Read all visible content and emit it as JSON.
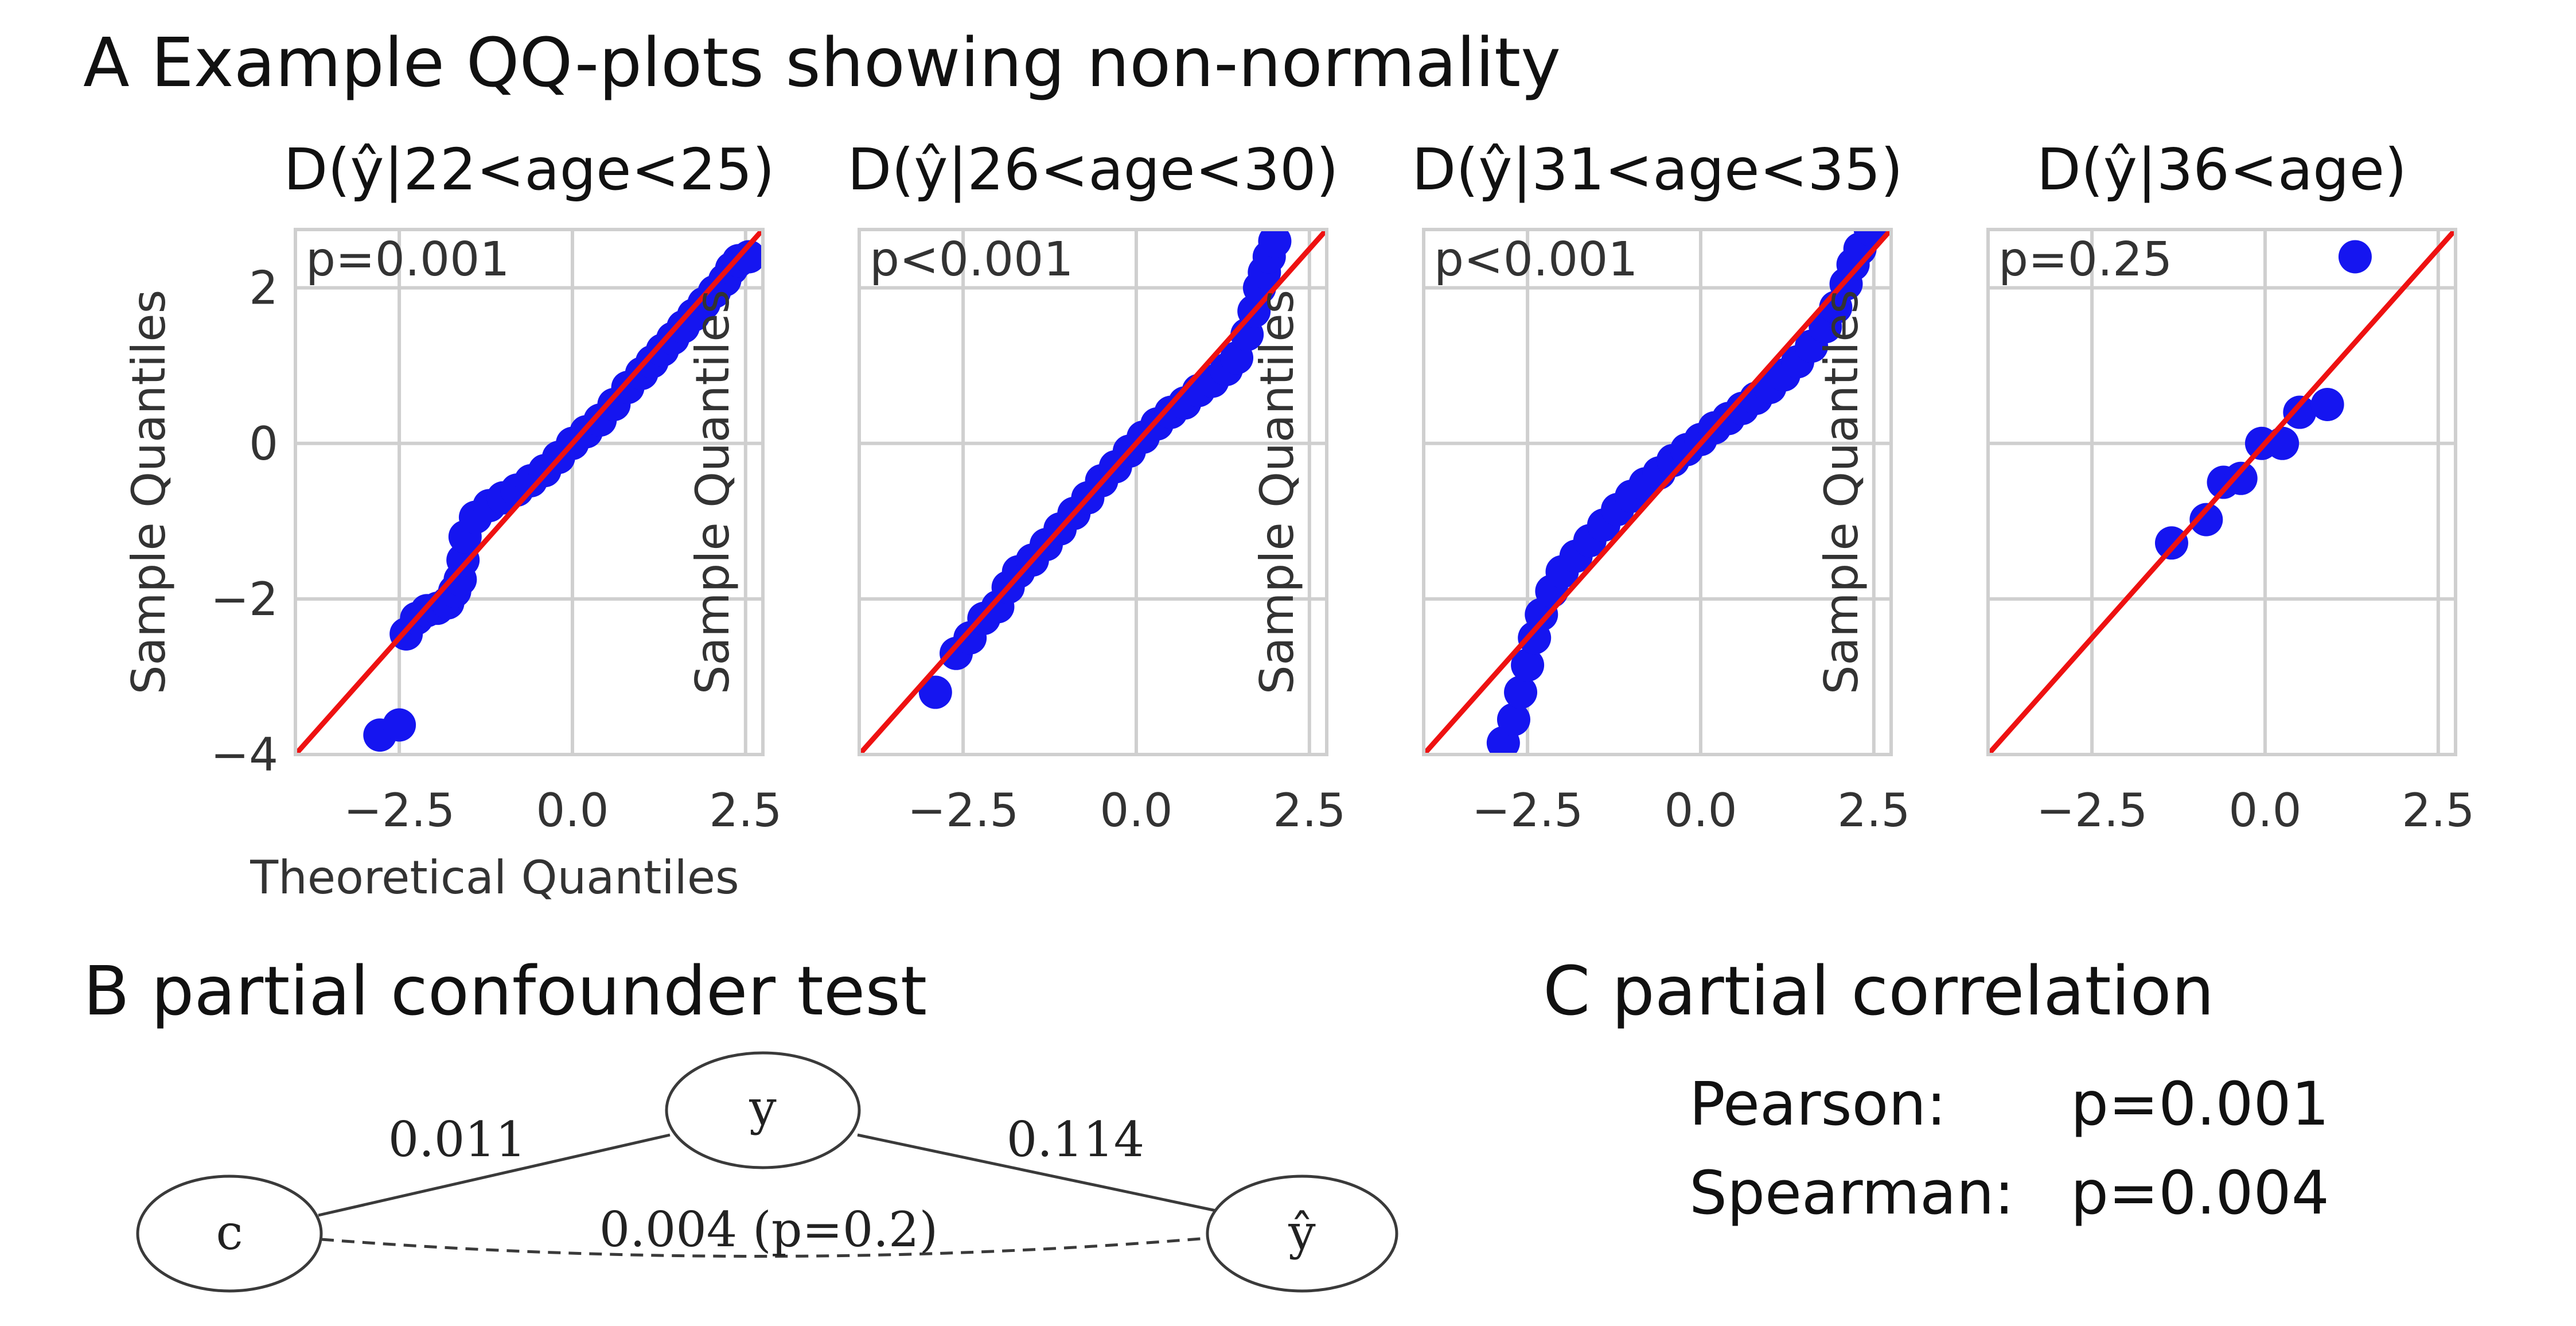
{
  "section_a": {
    "title": "A Example QQ-plots showing non-normality"
  },
  "chart_data": [
    {
      "type": "scatter",
      "title": "D(ŷ|22<age<25)",
      "xlabel": "Theoretical Quantiles",
      "ylabel": "Sample Quantiles",
      "annotation": "p=0.001",
      "xlim": [
        -4.0,
        2.75
      ],
      "ylim": [
        -4.0,
        2.75
      ],
      "xticks": [
        -2.5,
        0.0,
        2.5
      ],
      "xtick_labels": [
        "−2.5",
        "0.0",
        "2.5"
      ],
      "yticks": [
        -4,
        -2,
        0,
        2
      ],
      "ytick_labels": [
        "−4",
        "−2",
        "0",
        "2"
      ],
      "show_ytick_labels": true,
      "show_xlabel": true,
      "grid": true,
      "point_color": "#1515f0",
      "line_color": "#ee1111",
      "reference_line": {
        "slope": 1,
        "intercept": 0
      },
      "points": [
        [
          -2.78,
          -3.75
        ],
        [
          -2.5,
          -3.62
        ],
        [
          -2.4,
          -2.45
        ],
        [
          -2.25,
          -2.25
        ],
        [
          -2.1,
          -2.15
        ],
        [
          -1.95,
          -2.12
        ],
        [
          -1.8,
          -2.05
        ],
        [
          -1.7,
          -1.9
        ],
        [
          -1.62,
          -1.75
        ],
        [
          -1.58,
          -1.5
        ],
        [
          -1.55,
          -1.2
        ],
        [
          -1.4,
          -0.95
        ],
        [
          -1.2,
          -0.8
        ],
        [
          -1.0,
          -0.7
        ],
        [
          -0.8,
          -0.6
        ],
        [
          -0.6,
          -0.48
        ],
        [
          -0.4,
          -0.35
        ],
        [
          -0.2,
          -0.18
        ],
        [
          0.0,
          0.0
        ],
        [
          0.2,
          0.15
        ],
        [
          0.4,
          0.3
        ],
        [
          0.6,
          0.5
        ],
        [
          0.8,
          0.72
        ],
        [
          1.0,
          0.9
        ],
        [
          1.15,
          1.05
        ],
        [
          1.3,
          1.2
        ],
        [
          1.45,
          1.35
        ],
        [
          1.6,
          1.5
        ],
        [
          1.75,
          1.65
        ],
        [
          1.9,
          1.8
        ],
        [
          2.05,
          1.95
        ],
        [
          2.2,
          2.1
        ],
        [
          2.3,
          2.25
        ],
        [
          2.4,
          2.35
        ],
        [
          2.55,
          2.4
        ]
      ]
    },
    {
      "type": "scatter",
      "title": "D(ŷ|26<age<30)",
      "xlabel": "",
      "ylabel": "Sample Quantiles",
      "annotation": "p<0.001",
      "xlim": [
        -4.0,
        2.75
      ],
      "ylim": [
        -4.0,
        2.75
      ],
      "xticks": [
        -2.5,
        0.0,
        2.5
      ],
      "xtick_labels": [
        "−2.5",
        "0.0",
        "2.5"
      ],
      "yticks": [
        -4,
        -2,
        0,
        2
      ],
      "ytick_labels": [],
      "show_ytick_labels": false,
      "show_xlabel": false,
      "grid": true,
      "point_color": "#1515f0",
      "line_color": "#ee1111",
      "reference_line": {
        "slope": 1,
        "intercept": 0
      },
      "points": [
        [
          -2.9,
          -3.2
        ],
        [
          -2.6,
          -2.7
        ],
        [
          -2.4,
          -2.5
        ],
        [
          -2.2,
          -2.25
        ],
        [
          -2.0,
          -2.1
        ],
        [
          -1.85,
          -1.85
        ],
        [
          -1.7,
          -1.65
        ],
        [
          -1.5,
          -1.5
        ],
        [
          -1.3,
          -1.3
        ],
        [
          -1.1,
          -1.1
        ],
        [
          -0.9,
          -0.9
        ],
        [
          -0.7,
          -0.7
        ],
        [
          -0.5,
          -0.48
        ],
        [
          -0.3,
          -0.3
        ],
        [
          -0.1,
          -0.1
        ],
        [
          0.1,
          0.08
        ],
        [
          0.3,
          0.25
        ],
        [
          0.5,
          0.4
        ],
        [
          0.7,
          0.52
        ],
        [
          0.9,
          0.68
        ],
        [
          1.1,
          0.8
        ],
        [
          1.3,
          0.95
        ],
        [
          1.45,
          1.1
        ],
        [
          1.6,
          1.4
        ],
        [
          1.7,
          1.7
        ],
        [
          1.78,
          2.0
        ],
        [
          1.85,
          2.2
        ],
        [
          1.92,
          2.4
        ],
        [
          2.0,
          2.6
        ]
      ]
    },
    {
      "type": "scatter",
      "title": "D(ŷ|31<age<35)",
      "xlabel": "",
      "ylabel": "Sample Quantiles",
      "annotation": "p<0.001",
      "xlim": [
        -4.0,
        2.75
      ],
      "ylim": [
        -4.0,
        2.75
      ],
      "xticks": [
        -2.5,
        0.0,
        2.5
      ],
      "xtick_labels": [
        "−2.5",
        "0.0",
        "2.5"
      ],
      "yticks": [
        -4,
        -2,
        0,
        2
      ],
      "ytick_labels": [],
      "show_ytick_labels": false,
      "show_xlabel": false,
      "grid": true,
      "point_color": "#1515f0",
      "line_color": "#ee1111",
      "reference_line": {
        "slope": 1,
        "intercept": 0
      },
      "points": [
        [
          -2.85,
          -3.85
        ],
        [
          -2.7,
          -3.55
        ],
        [
          -2.6,
          -3.2
        ],
        [
          -2.5,
          -2.85
        ],
        [
          -2.4,
          -2.5
        ],
        [
          -2.3,
          -2.2
        ],
        [
          -2.15,
          -1.9
        ],
        [
          -2.0,
          -1.65
        ],
        [
          -1.8,
          -1.45
        ],
        [
          -1.6,
          -1.25
        ],
        [
          -1.4,
          -1.05
        ],
        [
          -1.2,
          -0.85
        ],
        [
          -1.0,
          -0.68
        ],
        [
          -0.8,
          -0.52
        ],
        [
          -0.6,
          -0.38
        ],
        [
          -0.4,
          -0.22
        ],
        [
          -0.2,
          -0.08
        ],
        [
          0.0,
          0.05
        ],
        [
          0.2,
          0.2
        ],
        [
          0.4,
          0.32
        ],
        [
          0.6,
          0.45
        ],
        [
          0.8,
          0.58
        ],
        [
          1.0,
          0.72
        ],
        [
          1.2,
          0.88
        ],
        [
          1.4,
          1.05
        ],
        [
          1.6,
          1.25
        ],
        [
          1.8,
          1.5
        ],
        [
          1.95,
          1.75
        ],
        [
          2.1,
          2.05
        ],
        [
          2.2,
          2.3
        ],
        [
          2.3,
          2.5
        ],
        [
          2.45,
          2.75
        ]
      ]
    },
    {
      "type": "scatter",
      "title": "D(ŷ|36<age)",
      "xlabel": "",
      "ylabel": "Sample Quantiles",
      "annotation": "p=0.25",
      "xlim": [
        -4.0,
        2.75
      ],
      "ylim": [
        -4.0,
        2.75
      ],
      "xticks": [
        -2.5,
        0.0,
        2.5
      ],
      "xtick_labels": [
        "−2.5",
        "0.0",
        "2.5"
      ],
      "yticks": [
        -4,
        -2,
        0,
        2
      ],
      "ytick_labels": [],
      "show_ytick_labels": false,
      "show_xlabel": false,
      "grid": true,
      "point_color": "#1515f0",
      "line_color": "#ee1111",
      "reference_line": {
        "slope": 1,
        "intercept": 0
      },
      "points": [
        [
          -1.35,
          -1.28
        ],
        [
          -0.85,
          -0.98
        ],
        [
          -0.6,
          -0.5
        ],
        [
          -0.35,
          -0.45
        ],
        [
          -0.05,
          0.0
        ],
        [
          0.25,
          0.0
        ],
        [
          0.5,
          0.4
        ],
        [
          0.9,
          0.5
        ],
        [
          1.3,
          2.4
        ]
      ]
    }
  ],
  "section_b": {
    "title": "B partial confounder test",
    "nodes": {
      "c": "c",
      "y": "y",
      "yhat": "ŷ"
    },
    "edges": {
      "c_y": "0.011",
      "y_yhat": "0.114",
      "c_yhat": "0.004 (p=0.2)"
    }
  },
  "section_c": {
    "title": "C partial correlation",
    "rows": [
      {
        "label": "Pearson:",
        "value": "p=0.001"
      },
      {
        "label": "Spearman:",
        "value": "p=0.004"
      }
    ]
  }
}
